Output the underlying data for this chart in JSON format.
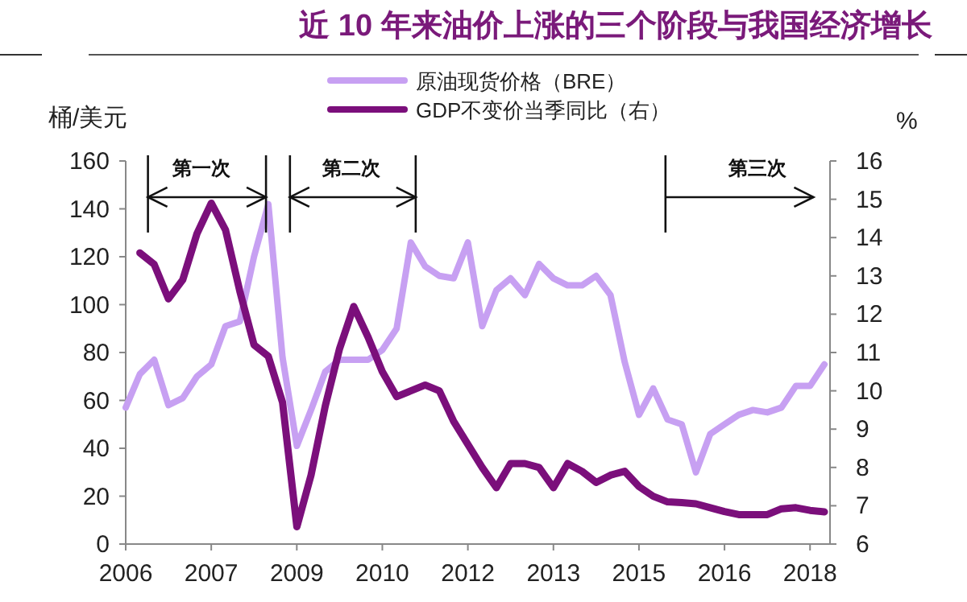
{
  "chart_data": {
    "type": "line",
    "title": "近 10 年来油价上涨的三个阶段与我国经济增长",
    "ylabel": "桶/美元",
    "y2label": "%",
    "legend": "top",
    "categories": [
      "2006",
      null,
      null,
      null,
      null,
      null,
      "2007",
      null,
      null,
      null,
      null,
      null,
      "2009",
      null,
      null,
      null,
      null,
      null,
      "2010",
      null,
      null,
      null,
      null,
      null,
      "2012",
      null,
      null,
      null,
      null,
      null,
      "2013",
      null,
      null,
      null,
      null,
      null,
      "2015",
      null,
      null,
      null,
      null,
      null,
      "2016",
      null,
      null,
      null,
      null,
      null,
      "2018",
      null
    ],
    "ylim": [
      0,
      160
    ],
    "yticks": [
      0,
      20,
      40,
      60,
      80,
      100,
      120,
      140,
      160
    ],
    "y2lim": [
      6,
      16
    ],
    "y2ticks": [
      6,
      7,
      8,
      9,
      10,
      11,
      12,
      13,
      14,
      15,
      16
    ],
    "annotations": [
      "第一次",
      "第二次",
      "第三次"
    ],
    "series": [
      {
        "name": "原油现货价格（BRE）",
        "color": "#c7a0f2",
        "values": [
          57,
          71,
          77,
          58,
          61,
          70,
          75,
          91,
          93,
          120,
          142,
          78,
          41,
          56,
          72,
          77,
          77,
          77,
          81,
          90,
          126,
          116,
          112,
          111,
          126,
          91,
          106,
          111,
          104,
          117,
          111,
          108,
          108,
          112,
          104,
          76,
          54,
          65,
          52,
          50,
          30,
          46,
          50,
          54,
          56,
          55,
          57,
          66,
          66,
          75
        ]
      },
      {
        "name": "GDP不变价当季同比（右）",
        "color": "#7b0f7b",
        "axis": "y2",
        "values": [
          null,
          13.6,
          13.3,
          12.4,
          12.9,
          14.1,
          14.9,
          14.2,
          12.6,
          11.2,
          10.9,
          9.7,
          6.45,
          7.8,
          9.6,
          11.1,
          12.2,
          11.4,
          10.5,
          9.85,
          10.0,
          10.15,
          10.0,
          9.2,
          8.6,
          8.0,
          7.47,
          8.1,
          8.1,
          8.0,
          7.47,
          8.1,
          7.9,
          7.61,
          7.8,
          7.9,
          7.5,
          7.25,
          7.1,
          7.08,
          7.05,
          6.95,
          6.85,
          6.77,
          6.77,
          6.77,
          6.92,
          6.95,
          6.88,
          6.84
        ]
      }
    ]
  }
}
